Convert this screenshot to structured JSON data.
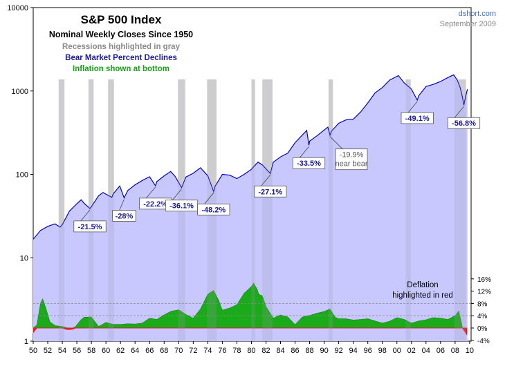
{
  "colors": {
    "price_fill": "#c8c8ff",
    "price_line": "#0000cc",
    "recession": "#c0c0c0",
    "inflation": "#1aaa1a",
    "deflation": "#dd2222",
    "bear_text": "#1a1aa0",
    "recession_text": "#8a8a8a",
    "inflation_text": "#18a018",
    "source_text": "#3a6fd0"
  },
  "chart_data": {
    "type": "area",
    "title": "S&P 500 Index",
    "subtitle": "Nominal Weekly Closes Since 1950",
    "notes": {
      "recessions": "Recessions highlighted in gray",
      "bear": "Bear Market Percent Declines",
      "inflation": "Inflation shown at bottom"
    },
    "source": "dshort.com",
    "date": "September 2009",
    "x_range": [
      1950,
      2010.2
    ],
    "x_ticks": [
      "50",
      "52",
      "54",
      "56",
      "58",
      "60",
      "62",
      "64",
      "66",
      "68",
      "70",
      "72",
      "74",
      "76",
      "78",
      "80",
      "82",
      "84",
      "86",
      "88",
      "90",
      "92",
      "94",
      "96",
      "98",
      "00",
      "02",
      "04",
      "06",
      "08",
      "10"
    ],
    "y_scale": "log",
    "y_range": [
      1,
      10000
    ],
    "y_ticks": [
      "1",
      "10",
      "100",
      "1000",
      "10000"
    ],
    "y2_range": [
      -4,
      16
    ],
    "y2_ticks": [
      "16%",
      "12%",
      "8%",
      "4%",
      "0%",
      "-4%"
    ],
    "y2_gridlines": [
      4,
      8
    ],
    "deflation_label": [
      "Deflation",
      "highlighted in red"
    ],
    "recessions": [
      [
        1953.5,
        1954.3
      ],
      [
        1957.6,
        1958.3
      ],
      [
        1960.3,
        1961.1
      ],
      [
        1969.9,
        1970.9
      ],
      [
        1973.9,
        1975.2
      ],
      [
        1980.0,
        1980.5
      ],
      [
        1981.5,
        1982.9
      ],
      [
        1990.6,
        1991.2
      ],
      [
        2001.2,
        2001.9
      ],
      [
        2007.9,
        2009.5
      ]
    ],
    "series": [
      {
        "name": "S&P 500",
        "points": [
          [
            1950.0,
            16.7
          ],
          [
            1951.0,
            21.2
          ],
          [
            1952.0,
            23.8
          ],
          [
            1953.0,
            25.5
          ],
          [
            1953.7,
            23.3
          ],
          [
            1954.0,
            25.0
          ],
          [
            1955.0,
            36.5
          ],
          [
            1956.0,
            44.5
          ],
          [
            1956.6,
            49.6
          ],
          [
            1957.0,
            45.0
          ],
          [
            1957.8,
            39.0
          ],
          [
            1958.0,
            41.0
          ],
          [
            1959.0,
            55.5
          ],
          [
            1959.6,
            60.7
          ],
          [
            1960.0,
            58.0
          ],
          [
            1960.8,
            53.0
          ],
          [
            1961.0,
            58.5
          ],
          [
            1961.9,
            72.6
          ],
          [
            1962.5,
            52.3
          ],
          [
            1963.0,
            64.0
          ],
          [
            1964.0,
            75.0
          ],
          [
            1965.0,
            84.5
          ],
          [
            1966.0,
            93.7
          ],
          [
            1966.8,
            73.2
          ],
          [
            1967.0,
            82.0
          ],
          [
            1968.0,
            96.0
          ],
          [
            1968.9,
            108.4
          ],
          [
            1969.5,
            95.0
          ],
          [
            1970.4,
            69.3
          ],
          [
            1971.0,
            93.0
          ],
          [
            1972.0,
            103.0
          ],
          [
            1973.0,
            120.2
          ],
          [
            1974.0,
            96.0
          ],
          [
            1974.8,
            62.3
          ],
          [
            1975.0,
            72.0
          ],
          [
            1976.0,
            100.0
          ],
          [
            1977.0,
            98.0
          ],
          [
            1978.0,
            89.0
          ],
          [
            1979.0,
            100.0
          ],
          [
            1980.0,
            115.0
          ],
          [
            1980.9,
            140.5
          ],
          [
            1981.5,
            130.0
          ],
          [
            1982.6,
            102.4
          ],
          [
            1983.0,
            140.0
          ],
          [
            1984.0,
            162.0
          ],
          [
            1985.0,
            180.0
          ],
          [
            1986.0,
            240.0
          ],
          [
            1987.6,
            336.8
          ],
          [
            1987.9,
            224.0
          ],
          [
            1988.0,
            250.0
          ],
          [
            1989.0,
            290.0
          ],
          [
            1990.5,
            368.9
          ],
          [
            1990.8,
            295.5
          ],
          [
            1991.0,
            330.0
          ],
          [
            1992.0,
            410.0
          ],
          [
            1993.0,
            450.0
          ],
          [
            1994.0,
            460.0
          ],
          [
            1995.0,
            560.0
          ],
          [
            1996.0,
            720.0
          ],
          [
            1997.0,
            950.0
          ],
          [
            1998.0,
            1100.0
          ],
          [
            1999.0,
            1350.0
          ],
          [
            2000.2,
            1527.5
          ],
          [
            2001.0,
            1250.0
          ],
          [
            2002.0,
            1050.0
          ],
          [
            2002.8,
            776.8
          ],
          [
            2003.0,
            880.0
          ],
          [
            2004.0,
            1130.0
          ],
          [
            2005.0,
            1200.0
          ],
          [
            2006.0,
            1300.0
          ],
          [
            2007.0,
            1450.0
          ],
          [
            2007.8,
            1565.2
          ],
          [
            2008.3,
            1350.0
          ],
          [
            2008.7,
            1100.0
          ],
          [
            2009.0,
            850.0
          ],
          [
            2009.2,
            676.5
          ],
          [
            2009.5,
            900.0
          ],
          [
            2009.7,
            1050.0
          ]
        ]
      },
      {
        "name": "Inflation",
        "points": [
          [
            1950.0,
            -1.5
          ],
          [
            1950.5,
            1.0
          ],
          [
            1951.0,
            8.0
          ],
          [
            1951.3,
            9.5
          ],
          [
            1951.8,
            6.0
          ],
          [
            1952.3,
            2.0
          ],
          [
            1953.0,
            0.8
          ],
          [
            1954.0,
            0.5
          ],
          [
            1954.7,
            -0.5
          ],
          [
            1955.4,
            -0.4
          ],
          [
            1955.8,
            0.4
          ],
          [
            1956.5,
            2.5
          ],
          [
            1957.0,
            3.5
          ],
          [
            1958.0,
            3.6
          ],
          [
            1958.5,
            2.0
          ],
          [
            1959.0,
            0.5
          ],
          [
            1960.0,
            1.8
          ],
          [
            1961.0,
            1.2
          ],
          [
            1962.0,
            1.2
          ],
          [
            1963.0,
            1.4
          ],
          [
            1964.0,
            1.3
          ],
          [
            1965.0,
            1.6
          ],
          [
            1966.0,
            3.2
          ],
          [
            1967.0,
            2.8
          ],
          [
            1968.0,
            4.3
          ],
          [
            1969.0,
            5.5
          ],
          [
            1970.0,
            5.9
          ],
          [
            1971.0,
            4.4
          ],
          [
            1972.0,
            3.2
          ],
          [
            1973.0,
            6.2
          ],
          [
            1974.0,
            11.0
          ],
          [
            1974.8,
            12.2
          ],
          [
            1975.5,
            9.0
          ],
          [
            1976.0,
            5.8
          ],
          [
            1977.0,
            6.5
          ],
          [
            1978.0,
            7.6
          ],
          [
            1979.0,
            11.3
          ],
          [
            1980.0,
            13.5
          ],
          [
            1980.3,
            14.6
          ],
          [
            1980.8,
            12.5
          ],
          [
            1981.0,
            11.0
          ],
          [
            1981.5,
            10.5
          ],
          [
            1982.0,
            7.0
          ],
          [
            1983.0,
            3.2
          ],
          [
            1984.0,
            4.3
          ],
          [
            1985.0,
            3.6
          ],
          [
            1986.0,
            1.1
          ],
          [
            1987.0,
            3.6
          ],
          [
            1988.0,
            4.1
          ],
          [
            1989.0,
            4.8
          ],
          [
            1990.0,
            5.4
          ],
          [
            1990.8,
            6.2
          ],
          [
            1991.5,
            3.5
          ],
          [
            1992.0,
            3.0
          ],
          [
            1993.0,
            3.0
          ],
          [
            1994.0,
            2.6
          ],
          [
            1995.0,
            2.8
          ],
          [
            1996.0,
            3.0
          ],
          [
            1997.0,
            2.3
          ],
          [
            1998.0,
            1.6
          ],
          [
            1999.0,
            2.2
          ],
          [
            2000.0,
            3.4
          ],
          [
            2001.0,
            2.8
          ],
          [
            2002.0,
            1.6
          ],
          [
            2003.0,
            2.3
          ],
          [
            2004.0,
            2.7
          ],
          [
            2005.0,
            3.4
          ],
          [
            2006.0,
            3.2
          ],
          [
            2007.0,
            2.8
          ],
          [
            2008.0,
            4.0
          ],
          [
            2008.5,
            5.5
          ],
          [
            2008.9,
            1.5
          ],
          [
            2009.0,
            0.0
          ],
          [
            2009.3,
            -1.0
          ],
          [
            2009.6,
            -2.1
          ]
        ]
      }
    ],
    "bear_labels": [
      {
        "text": "-21.5%",
        "style": "bear",
        "x": 1957.8,
        "y": 39.0
      },
      {
        "text": "-28%",
        "style": "bear",
        "x": 1962.5,
        "y": 52.3
      },
      {
        "text": "-22.2%",
        "style": "bear",
        "x": 1966.8,
        "y": 73.2
      },
      {
        "text": "-36.1%",
        "style": "bear",
        "x": 1970.4,
        "y": 69.3
      },
      {
        "text": "-48.2%",
        "style": "bear",
        "x": 1974.8,
        "y": 62.3
      },
      {
        "text": "-27.1%",
        "style": "bear",
        "x": 1982.6,
        "y": 102.4
      },
      {
        "text": "-33.5%",
        "style": "bear",
        "x": 1987.9,
        "y": 224.0
      },
      {
        "text": "-19.9%",
        "text2": "near bear",
        "style": "near",
        "x": 1990.8,
        "y": 295.5
      },
      {
        "text": "-49.1%",
        "style": "bear",
        "x": 2002.8,
        "y": 776.8
      },
      {
        "text": "-56.8%",
        "style": "bear",
        "x": 2009.2,
        "y": 676.5
      }
    ]
  }
}
